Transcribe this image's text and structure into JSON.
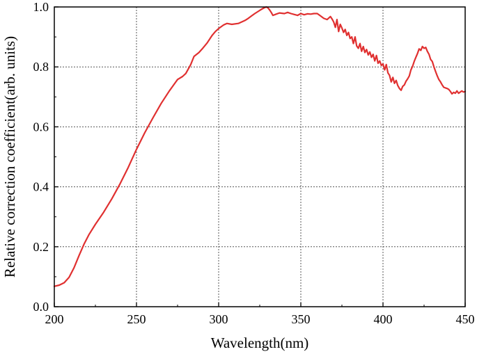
{
  "chart_data": {
    "type": "line",
    "title": "",
    "xlabel": "Wavelength(nm)",
    "ylabel": "Relative correction coefficient(arb. units)",
    "xlim": [
      200,
      450
    ],
    "ylim": [
      0.0,
      1.0
    ],
    "x_ticks": [
      200,
      250,
      300,
      350,
      400,
      450
    ],
    "y_ticks": [
      0.0,
      0.2,
      0.4,
      0.6,
      0.8,
      1.0
    ],
    "x_tick_labels": [
      "200",
      "250",
      "300",
      "350",
      "400",
      "450"
    ],
    "y_tick_labels": [
      "0.0",
      "0.2",
      "0.4",
      "0.6",
      "0.8",
      "1.0"
    ],
    "grid": true,
    "legend": "none",
    "series": [
      {
        "color": "#e03030",
        "x": [
          200,
          203,
          206,
          209,
          212,
          215,
          218,
          221,
          225,
          230,
          235,
          240,
          245,
          250,
          255,
          260,
          265,
          270,
          275,
          278,
          280,
          283,
          285,
          288,
          290,
          293,
          296,
          298,
          300,
          303,
          305,
          308,
          312,
          316,
          318,
          320,
          322,
          324,
          326,
          328,
          329,
          330,
          331,
          332,
          333,
          335,
          337,
          340,
          342,
          344,
          346,
          348,
          350,
          352,
          354,
          356,
          358,
          360,
          362,
          364,
          366,
          368,
          369,
          370,
          371,
          372,
          373,
          374,
          375,
          376,
          377,
          378,
          379,
          380,
          381,
          382,
          383,
          384,
          385,
          386,
          387,
          388,
          389,
          390,
          391,
          392,
          393,
          394,
          395,
          396,
          397,
          398,
          399,
          400,
          401,
          402,
          403,
          404,
          405,
          406,
          407,
          408,
          409,
          410,
          411,
          412,
          413,
          414,
          415,
          416,
          417,
          418,
          419,
          420,
          421,
          422,
          423,
          424,
          425,
          426,
          427,
          428,
          429,
          430,
          431,
          432,
          433,
          434,
          435,
          436,
          437,
          438,
          439,
          440,
          441,
          442,
          443,
          444,
          445,
          446,
          447,
          448,
          449,
          450
        ],
        "y": [
          0.068,
          0.072,
          0.08,
          0.098,
          0.13,
          0.17,
          0.208,
          0.24,
          0.275,
          0.315,
          0.36,
          0.41,
          0.465,
          0.525,
          0.58,
          0.63,
          0.678,
          0.72,
          0.758,
          0.768,
          0.778,
          0.808,
          0.835,
          0.848,
          0.86,
          0.88,
          0.905,
          0.918,
          0.928,
          0.94,
          0.945,
          0.942,
          0.945,
          0.955,
          0.962,
          0.97,
          0.978,
          0.985,
          0.992,
          0.998,
          1.0,
          0.997,
          0.99,
          0.982,
          0.972,
          0.976,
          0.98,
          0.978,
          0.982,
          0.978,
          0.975,
          0.972,
          0.978,
          0.974,
          0.977,
          0.976,
          0.978,
          0.978,
          0.97,
          0.962,
          0.958,
          0.968,
          0.96,
          0.95,
          0.932,
          0.958,
          0.918,
          0.942,
          0.93,
          0.915,
          0.925,
          0.905,
          0.915,
          0.895,
          0.9,
          0.878,
          0.9,
          0.87,
          0.862,
          0.878,
          0.852,
          0.868,
          0.848,
          0.858,
          0.84,
          0.85,
          0.832,
          0.842,
          0.82,
          0.838,
          0.812,
          0.82,
          0.805,
          0.81,
          0.79,
          0.808,
          0.78,
          0.772,
          0.75,
          0.765,
          0.745,
          0.755,
          0.738,
          0.728,
          0.722,
          0.735,
          0.74,
          0.752,
          0.76,
          0.77,
          0.79,
          0.802,
          0.818,
          0.832,
          0.845,
          0.86,
          0.855,
          0.868,
          0.862,
          0.865,
          0.852,
          0.842,
          0.825,
          0.818,
          0.8,
          0.785,
          0.77,
          0.758,
          0.75,
          0.74,
          0.732,
          0.73,
          0.728,
          0.725,
          0.718,
          0.71,
          0.715,
          0.712,
          0.72,
          0.712,
          0.716,
          0.72,
          0.716,
          0.718
        ]
      }
    ]
  }
}
